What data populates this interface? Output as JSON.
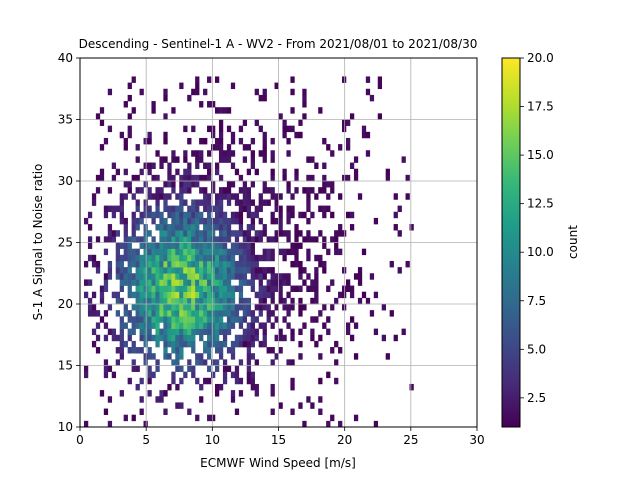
{
  "chart_data": {
    "type": "heatmap",
    "title": "Descending - Sentinel-1 A - WV2 - From 2021/08/01 to 2021/08/30",
    "xlabel": "ECMWF Wind Speed [m/s]",
    "ylabel": "S-1 A Signal to Noise ratio",
    "xlim": [
      0,
      30
    ],
    "ylim": [
      10,
      40
    ],
    "xticks": [
      "0",
      "5",
      "10",
      "15",
      "20",
      "25",
      "30"
    ],
    "yticks": [
      "10",
      "15",
      "20",
      "25",
      "30",
      "35",
      "40"
    ],
    "grid": true,
    "bin_size": [
      0.3,
      0.5
    ],
    "density": {
      "description": "2D histogram counts; dense core centered near wind 7.5 m/s, SNR 21, spreading from wind 0.5-25 and SNR 10-38",
      "peak_count": 20,
      "peak_center": [
        7.5,
        21
      ]
    },
    "colorbar": {
      "label": "count",
      "colormap": "viridis",
      "range": [
        1,
        20
      ],
      "ticks": [
        "2.5",
        "5.0",
        "7.5",
        "10.0",
        "12.5",
        "15.0",
        "17.5",
        "20.0"
      ]
    },
    "colors": {
      "viridis_stops": [
        "#440154",
        "#482878",
        "#3e4989",
        "#31688e",
        "#26828e",
        "#1f9e89",
        "#35b779",
        "#6ece58",
        "#b5de2b",
        "#fde725"
      ]
    }
  }
}
